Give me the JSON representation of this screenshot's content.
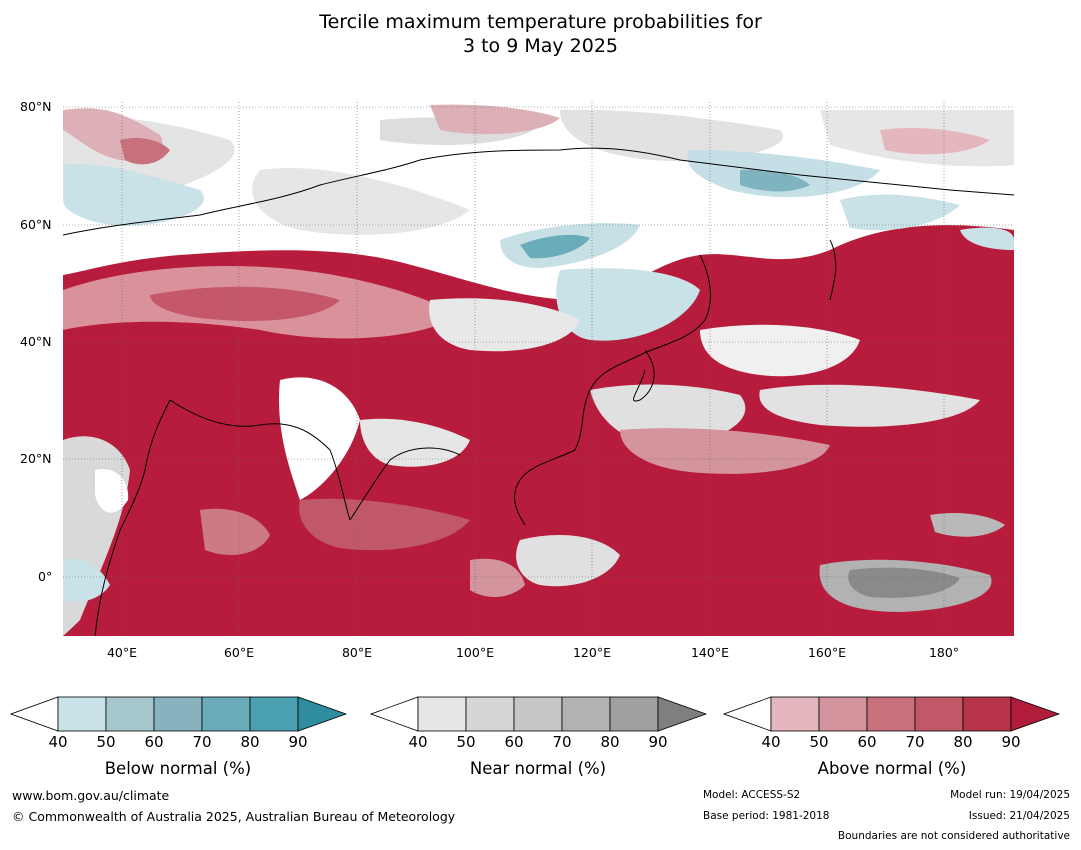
{
  "title_line1": "Tercile maximum temperature probabilities for",
  "title_line2": "3 to 9 May 2025",
  "map": {
    "lat_labels": [
      "80°N",
      "60°N",
      "40°N",
      "20°N",
      "0°"
    ],
    "lon_labels": [
      "40°E",
      "60°E",
      "80°E",
      "100°E",
      "120°E",
      "140°E",
      "160°E",
      "180°"
    ]
  },
  "colorbars": [
    {
      "name": "below",
      "title": "Below normal (%)",
      "ticks": [
        "40",
        "50",
        "60",
        "70",
        "80",
        "90"
      ],
      "colors": [
        "#ffffff",
        "#c9e2e8",
        "#a7c7ce",
        "#88b2bd",
        "#6aacb9",
        "#4a9fb0",
        "#2e8ea0"
      ]
    },
    {
      "name": "near",
      "title": "Near normal (%)",
      "ticks": [
        "40",
        "50",
        "60",
        "70",
        "80",
        "90"
      ],
      "colors": [
        "#ffffff",
        "#e6e6e6",
        "#d6d6d6",
        "#c6c6c6",
        "#b2b2b2",
        "#a0a0a0",
        "#7f7f7f"
      ]
    },
    {
      "name": "above",
      "title": "Above normal (%)",
      "ticks": [
        "40",
        "50",
        "60",
        "70",
        "80",
        "90"
      ],
      "colors": [
        "#ffffff",
        "#e3b7bd",
        "#d4949d",
        "#c8717d",
        "#c05868",
        "#b8344b",
        "#b01c3a"
      ]
    }
  ],
  "footer": {
    "website": "www.bom.gov.au/climate",
    "copyright": "© Commonwealth of Australia 2025, Australian Bureau of Meteorology",
    "model": "Model: ACCESS-S2",
    "base_period": "Base period: 1981-2018",
    "model_run": "Model run: 19/04/2025",
    "issued": "Issued: 21/04/2025",
    "boundaries": "Boundaries are not considered authoritative"
  }
}
